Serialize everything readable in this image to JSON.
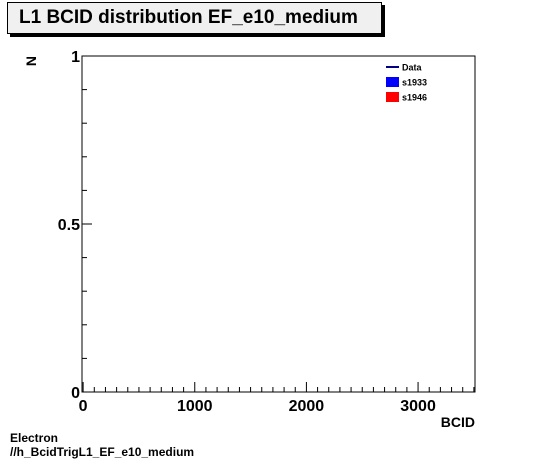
{
  "chart_data": {
    "type": "line",
    "title": "L1 BCID distribution EF_e10_medium",
    "xlabel": "BCID",
    "ylabel": "N",
    "xlim": [
      -10,
      3510
    ],
    "ylim": [
      0,
      1
    ],
    "x_ticks": [
      0,
      1000,
      2000,
      3000
    ],
    "y_ticks": [
      0,
      0.5,
      1
    ],
    "x_tick_labels": [
      "0",
      "1000",
      "2000",
      "3000"
    ],
    "y_tick_labels": [
      "0",
      "0.5",
      "1"
    ],
    "grid": false,
    "legend_position": "top-right",
    "series": [
      {
        "name": "Data",
        "style": "line",
        "color": "#000080",
        "values": []
      },
      {
        "name": "s1933",
        "style": "fill",
        "color": "#0000ff",
        "values": []
      },
      {
        "name": "s1946",
        "style": "fill",
        "color": "#ff0000",
        "values": []
      }
    ]
  },
  "footer": {
    "line1": "Electron",
    "line2": "//h_BcidTrigL1_EF_e10_medium"
  }
}
